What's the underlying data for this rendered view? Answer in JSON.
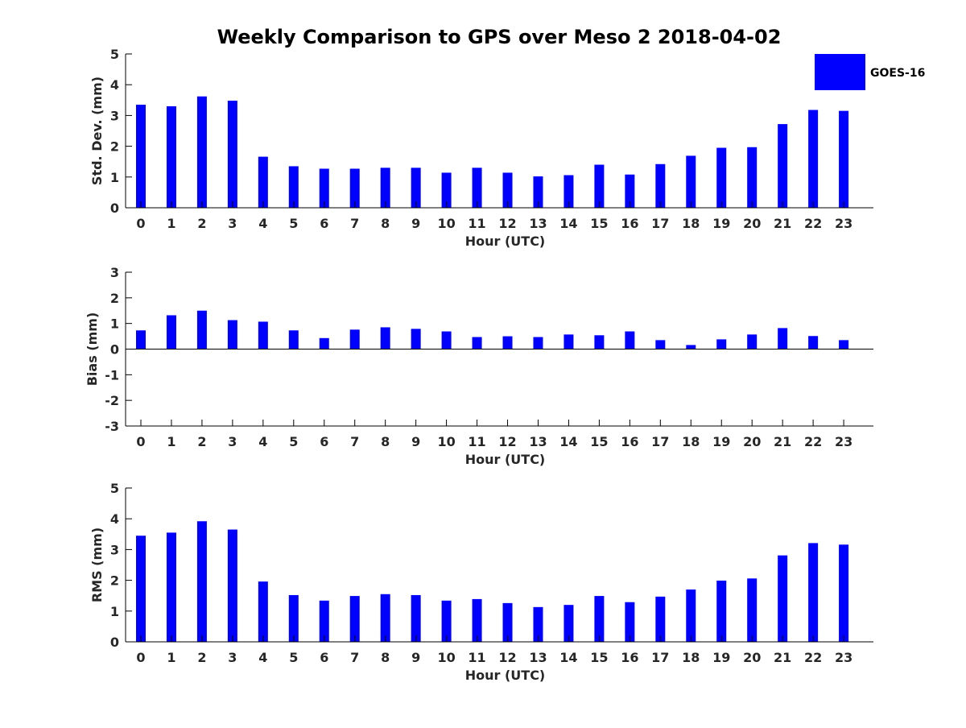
{
  "title": "Weekly Comparison to GPS over Meso 2 2018-04-02",
  "legend": {
    "label": "GOES-16",
    "color": "#0000ff",
    "placement": "top-right"
  },
  "chart_data": [
    {
      "type": "bar",
      "name": "std-dev",
      "xlabel": "Hour (UTC)",
      "ylabel": "Std. Dev. (mm)",
      "ylim": [
        0,
        5
      ],
      "yticks": [
        "0",
        "1",
        "2",
        "3",
        "4",
        "5"
      ],
      "categories": [
        "0",
        "1",
        "2",
        "3",
        "4",
        "5",
        "6",
        "7",
        "8",
        "9",
        "10",
        "11",
        "12",
        "13",
        "14",
        "15",
        "16",
        "17",
        "18",
        "19",
        "20",
        "21",
        "22",
        "23"
      ],
      "series": [
        {
          "name": "GOES-16",
          "color": "#0000ff",
          "values": [
            3.35,
            3.3,
            3.62,
            3.48,
            1.66,
            1.35,
            1.27,
            1.27,
            1.3,
            1.3,
            1.14,
            1.3,
            1.14,
            1.02,
            1.06,
            1.4,
            1.08,
            1.42,
            1.69,
            1.95,
            1.97,
            2.72,
            3.18,
            3.15
          ]
        }
      ]
    },
    {
      "type": "bar",
      "name": "bias",
      "xlabel": "Hour (UTC)",
      "ylabel": "Bias (mm)",
      "ylim": [
        -3,
        3
      ],
      "yticks": [
        "-3",
        "-2",
        "-1",
        "0",
        "1",
        "2",
        "3"
      ],
      "categories": [
        "0",
        "1",
        "2",
        "3",
        "4",
        "5",
        "6",
        "7",
        "8",
        "9",
        "10",
        "11",
        "12",
        "13",
        "14",
        "15",
        "16",
        "17",
        "18",
        "19",
        "20",
        "21",
        "22",
        "23"
      ],
      "series": [
        {
          "name": "GOES-16",
          "color": "#0000ff",
          "values": [
            0.73,
            1.32,
            1.5,
            1.13,
            1.07,
            0.73,
            0.43,
            0.76,
            0.85,
            0.79,
            0.69,
            0.47,
            0.5,
            0.47,
            0.57,
            0.54,
            0.69,
            0.35,
            0.16,
            0.38,
            0.57,
            0.82,
            0.51,
            0.35
          ]
        }
      ]
    },
    {
      "type": "bar",
      "name": "rms",
      "xlabel": "Hour (UTC)",
      "ylabel": "RMS (mm)",
      "ylim": [
        0,
        5
      ],
      "yticks": [
        "0",
        "1",
        "2",
        "3",
        "4",
        "5"
      ],
      "categories": [
        "0",
        "1",
        "2",
        "3",
        "4",
        "5",
        "6",
        "7",
        "8",
        "9",
        "10",
        "11",
        "12",
        "13",
        "14",
        "15",
        "16",
        "17",
        "18",
        "19",
        "20",
        "21",
        "22",
        "23"
      ],
      "series": [
        {
          "name": "GOES-16",
          "color": "#0000ff",
          "values": [
            3.45,
            3.55,
            3.92,
            3.65,
            1.96,
            1.52,
            1.34,
            1.49,
            1.55,
            1.52,
            1.34,
            1.39,
            1.26,
            1.13,
            1.2,
            1.49,
            1.29,
            1.47,
            1.7,
            1.99,
            2.06,
            2.81,
            3.21,
            3.16
          ]
        }
      ]
    }
  ]
}
